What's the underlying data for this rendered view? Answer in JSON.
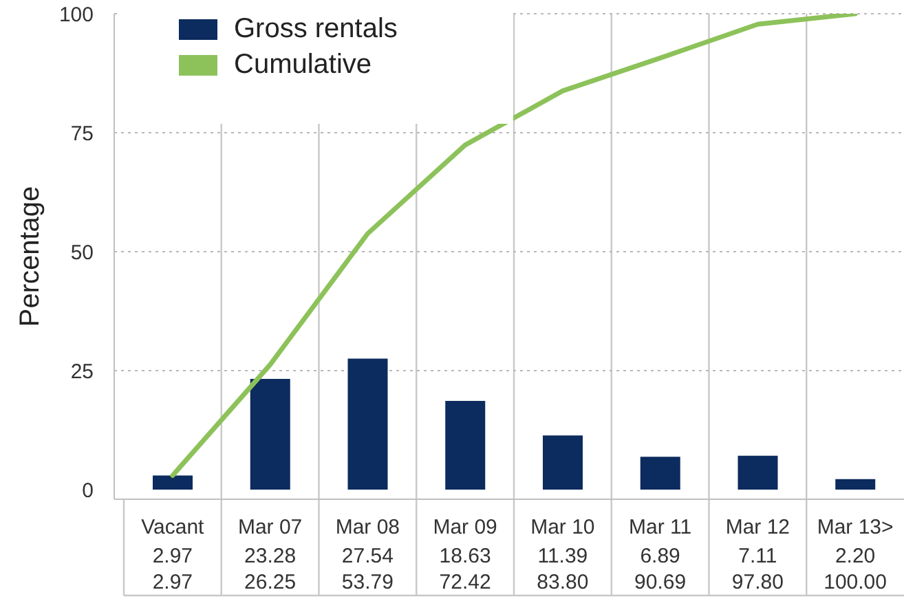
{
  "chart_data": {
    "type": "bar",
    "ylabel": "Percentage",
    "categories": [
      "Vacant",
      "Mar 07",
      "Mar 08",
      "Mar 09",
      "Mar 10",
      "Mar 11",
      "Mar 12",
      "Mar 13>"
    ],
    "series": [
      {
        "name": "Gross rentals",
        "color": "#0c2b5e",
        "values": [
          2.97,
          23.28,
          27.54,
          18.63,
          11.39,
          6.89,
          7.11,
          2.2
        ],
        "value_labels": [
          "2.97",
          "23.28",
          "27.54",
          "18.63",
          "11.39",
          "6.89",
          "7.11",
          "2.20"
        ]
      },
      {
        "name": "Cumulative",
        "type": "line",
        "color": "#8dc25a",
        "values": [
          2.97,
          26.25,
          53.79,
          72.42,
          83.8,
          90.69,
          97.8,
          100.0
        ],
        "value_labels": [
          "2.97",
          "26.25",
          "53.79",
          "72.42",
          "83.80",
          "90.69",
          "97.80",
          "100.00"
        ]
      }
    ],
    "ylim": [
      0,
      100
    ],
    "yticks": [
      0,
      25,
      50,
      75,
      100
    ],
    "grid": true,
    "legend": "top left",
    "marker": "none",
    "line_style": "solid"
  }
}
